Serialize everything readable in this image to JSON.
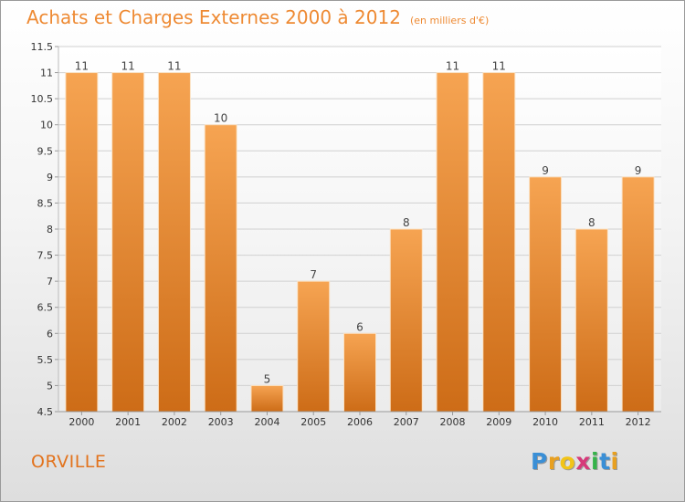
{
  "chart_data": {
    "type": "bar",
    "title": "Achats et Charges Externes 2000 à 2012",
    "subtitle": "(en milliers d'€)",
    "categories": [
      "2000",
      "2001",
      "2002",
      "2003",
      "2004",
      "2005",
      "2006",
      "2007",
      "2008",
      "2009",
      "2010",
      "2011",
      "2012"
    ],
    "values": [
      11,
      11,
      11,
      10,
      5,
      7,
      6,
      8,
      11,
      11,
      9,
      8,
      9
    ],
    "ylim": [
      4.5,
      11.5
    ],
    "yticks": [
      "4.5",
      "5",
      "5.5",
      "6",
      "6.5",
      "7",
      "7.5",
      "8",
      "8.5",
      "9",
      "9.5",
      "10",
      "10.5",
      "11",
      "11.5"
    ],
    "grid": true,
    "bar_color_top": "#f6a452",
    "bar_color_bottom": "#cd6c17"
  },
  "location_label": "ORVILLE",
  "logo": {
    "letters": [
      "P",
      "r",
      "o",
      "x",
      "i",
      "t",
      "i"
    ],
    "colors": [
      "#3a8fd6",
      "#e8a020",
      "#f2c418",
      "#d63a7a",
      "#35b34a",
      "#3a8fd6",
      "#e8a020"
    ]
  },
  "colors": {
    "title": "#ee8a33",
    "location": "#e2731d",
    "grid": "#d0d0d0"
  }
}
